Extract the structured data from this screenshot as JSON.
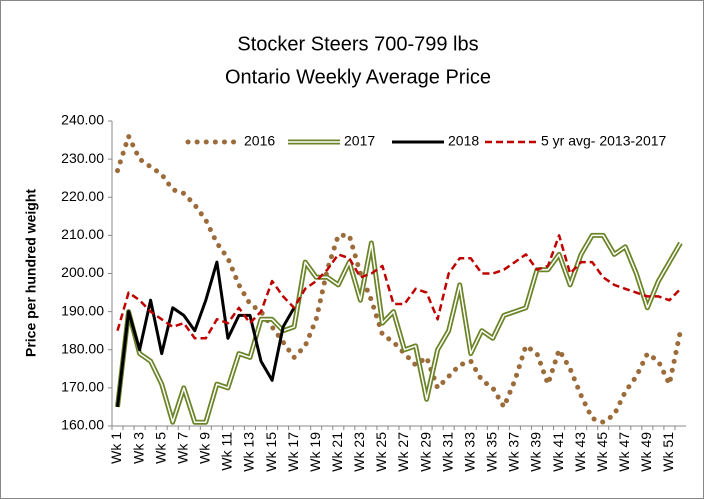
{
  "chart_data": {
    "type": "line",
    "title": "Stocker Steers 700-799 lbs",
    "subtitle": "Ontario Weekly Average Price",
    "y_label": "Price per hundred weight",
    "categories": [
      "Wk 1",
      null,
      "Wk 3",
      null,
      "Wk 5",
      null,
      "Wk 7",
      null,
      "Wk 9",
      null,
      "Wk 11",
      null,
      "Wk 13",
      null,
      "Wk 15",
      null,
      "Wk 17",
      null,
      "Wk 19",
      null,
      "Wk 21",
      null,
      "Wk 23",
      null,
      "Wk 25",
      null,
      "Wk 27",
      null,
      "Wk 29",
      null,
      "Wk 31",
      null,
      "Wk 33",
      null,
      "Wk 35",
      null,
      "Wk 37",
      null,
      "Wk 39",
      null,
      "Wk 41",
      null,
      "Wk 43",
      null,
      "Wk 45",
      null,
      "Wk 47",
      null,
      "Wk 49",
      null,
      "Wk 51",
      null
    ],
    "series": [
      {
        "name": "2016",
        "color": "#9c6b3a",
        "style": "dotted",
        "values": [
          227,
          236,
          230,
          228,
          226,
          222,
          221,
          218,
          214,
          208,
          204,
          197,
          192,
          190,
          186,
          182,
          178,
          181,
          188,
          201,
          210,
          210,
          200,
          193,
          184,
          182,
          179,
          176,
          178,
          170,
          173,
          176,
          177,
          172,
          170,
          165,
          172,
          181,
          179,
          171,
          180,
          175,
          168,
          162,
          161,
          163,
          169,
          173,
          179,
          177,
          171,
          185
        ]
      },
      {
        "name": "2017",
        "color": "#6b8428",
        "style": "double",
        "values": [
          165,
          190,
          179,
          177,
          171,
          161,
          170,
          161,
          161,
          171,
          170,
          179,
          178,
          188,
          188,
          185,
          186,
          203,
          199,
          199,
          197,
          203,
          193,
          208,
          187,
          190,
          180,
          181,
          167,
          180,
          185,
          197,
          179,
          185,
          183,
          189,
          190,
          191,
          201,
          201,
          205,
          197,
          205,
          210,
          210,
          205,
          207,
          200,
          191,
          198,
          203,
          208
        ]
      },
      {
        "name": "2018",
        "color": "#000000",
        "style": "solid",
        "values": [
          165,
          190,
          180,
          193,
          179,
          191,
          189,
          185,
          193,
          203,
          183,
          189,
          189,
          177,
          172,
          186,
          191,
          null,
          null,
          null,
          null,
          null,
          null,
          null,
          null,
          null,
          null,
          null,
          null,
          null,
          null,
          null,
          null,
          null,
          null,
          null,
          null,
          null,
          null,
          null,
          null,
          null,
          null,
          null,
          null,
          null,
          null,
          null,
          null,
          null,
          null,
          null
        ]
      },
      {
        "name": "5 yr avg- 2013-2017",
        "color": "#c00000",
        "style": "dashed",
        "values": [
          185,
          195,
          193,
          190,
          188,
          186,
          187,
          183,
          183,
          188,
          187,
          191,
          187,
          190,
          198,
          194,
          191,
          196,
          198,
          201,
          205,
          204,
          199,
          200,
          202,
          192,
          192,
          196,
          195,
          188,
          200,
          204,
          204,
          200,
          200,
          201,
          203,
          205,
          201,
          202,
          210,
          200,
          203,
          203,
          199,
          197,
          196,
          195,
          194,
          194,
          193,
          196
        ]
      }
    ],
    "ylim": [
      160,
      240
    ],
    "yticks": [
      {
        "value": 160,
        "label": "160.00"
      },
      {
        "value": 170,
        "label": "170.00"
      },
      {
        "value": 180,
        "label": "180.00"
      },
      {
        "value": 190,
        "label": "190.00"
      },
      {
        "value": 200,
        "label": "200.00"
      },
      {
        "value": 210,
        "label": "210.00"
      },
      {
        "value": 220,
        "label": "220.00"
      },
      {
        "value": 230,
        "label": "230.00"
      },
      {
        "value": 240,
        "label": "240.00"
      }
    ],
    "grid": false,
    "legend": "top"
  }
}
